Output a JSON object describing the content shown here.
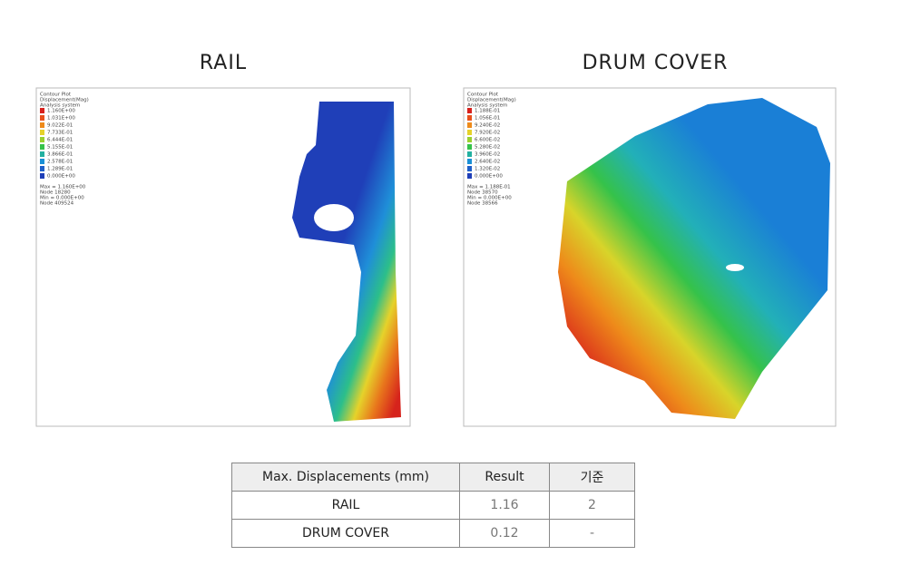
{
  "panels": [
    {
      "title": "RAIL",
      "legend_header": [
        "Contour Plot",
        "Displacement(Mag)",
        "Analysis system"
      ],
      "legend_values": [
        "1.160E+00",
        "1.031E+00",
        "9.022E-01",
        "7.733E-01",
        "6.444E-01",
        "5.155E-01",
        "3.866E-01",
        "2.578E-01",
        "1.289E-01",
        "0.000E+00"
      ],
      "legend_footer": [
        "Max = 1.160E+00",
        "Node 18280",
        "Min = 0.000E+00",
        "Node 409524"
      ]
    },
    {
      "title": "DRUM COVER",
      "legend_header": [
        "Contour Plot",
        "Displacement(Mag)",
        "Analysis system"
      ],
      "legend_values": [
        "1.188E-01",
        "1.056E-01",
        "9.240E-02",
        "7.920E-02",
        "6.600E-02",
        "5.280E-02",
        "3.960E-02",
        "2.640E-02",
        "1.320E-02",
        "0.000E+00"
      ],
      "legend_footer": [
        "Max = 1.188E-01",
        "Node 38570",
        "Min = 0.000E+00",
        "Node 38566"
      ]
    }
  ],
  "table": {
    "header": [
      "Max. Displacements (mm)",
      "Result",
      "기준"
    ],
    "rows": [
      [
        "RAIL",
        "1.16",
        "2"
      ],
      [
        "DRUM COVER",
        "0.12",
        "-"
      ]
    ]
  }
}
